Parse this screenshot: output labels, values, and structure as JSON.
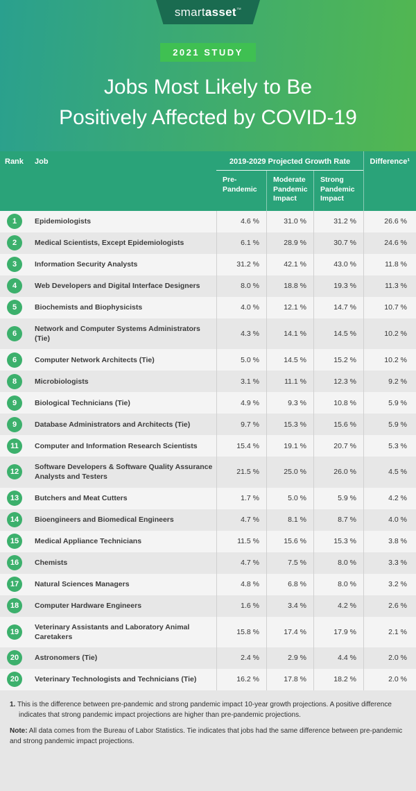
{
  "brand": {
    "smart": "smart",
    "asset": "asset",
    "tm": "™"
  },
  "hero": {
    "badge": "2021 STUDY",
    "title_line1": "Jobs Most Likely to Be",
    "title_line2": "Positively Affected by COVID-19"
  },
  "table": {
    "header": {
      "rank": "Rank",
      "job": "Job",
      "growth_group": "2019-2029 Projected Growth Rate",
      "pre": "Pre-Pandemic",
      "moderate": "Moderate Pandemic Impact",
      "strong": "Strong Pandemic Impact",
      "difference": "Difference¹"
    }
  },
  "chart_data": {
    "type": "table",
    "title": "Jobs Most Likely to Be Positively Affected by COVID-19",
    "columns": [
      "Rank",
      "Job",
      "Pre-Pandemic",
      "Moderate Pandemic Impact",
      "Strong Pandemic Impact",
      "Difference"
    ],
    "rows": [
      {
        "rank": "1",
        "job": "Epidemiologists",
        "pre": "4.6 %",
        "moderate": "31.0 %",
        "strong": "31.2 %",
        "difference": "26.6 %"
      },
      {
        "rank": "2",
        "job": "Medical Scientists, Except Epidemiologists",
        "pre": "6.1 %",
        "moderate": "28.9 %",
        "strong": "30.7 %",
        "difference": "24.6 %"
      },
      {
        "rank": "3",
        "job": "Information Security Analysts",
        "pre": "31.2 %",
        "moderate": "42.1 %",
        "strong": "43.0 %",
        "difference": "11.8 %"
      },
      {
        "rank": "4",
        "job": "Web Developers and Digital Interface Designers",
        "pre": "8.0 %",
        "moderate": "18.8 %",
        "strong": "19.3 %",
        "difference": "11.3 %"
      },
      {
        "rank": "5",
        "job": "Biochemists and Biophysicists",
        "pre": "4.0 %",
        "moderate": "12.1 %",
        "strong": "14.7 %",
        "difference": "10.7 %"
      },
      {
        "rank": "6",
        "job": "Network and Computer Systems Administrators (Tie)",
        "pre": "4.3 %",
        "moderate": "14.1 %",
        "strong": "14.5 %",
        "difference": "10.2 %"
      },
      {
        "rank": "6",
        "job": "Computer Network Architects (Tie)",
        "pre": "5.0 %",
        "moderate": "14.5 %",
        "strong": "15.2 %",
        "difference": "10.2 %"
      },
      {
        "rank": "8",
        "job": "Microbiologists",
        "pre": "3.1 %",
        "moderate": "11.1 %",
        "strong": "12.3 %",
        "difference": "9.2 %"
      },
      {
        "rank": "9",
        "job": "Biological Technicians (Tie)",
        "pre": "4.9 %",
        "moderate": "9.3 %",
        "strong": "10.8 %",
        "difference": "5.9 %"
      },
      {
        "rank": "9",
        "job": "Database Administrators and Architects (Tie)",
        "pre": "9.7 %",
        "moderate": "15.3 %",
        "strong": "15.6 %",
        "difference": "5.9 %"
      },
      {
        "rank": "11",
        "job": "Computer and Information Research Scientists",
        "pre": "15.4 %",
        "moderate": "19.1 %",
        "strong": "20.7 %",
        "difference": "5.3 %"
      },
      {
        "rank": "12",
        "job": "Software Developers & Software Quality Assurance Analysts and Testers",
        "pre": "21.5 %",
        "moderate": "25.0 %",
        "strong": "26.0 %",
        "difference": "4.5 %"
      },
      {
        "rank": "13",
        "job": "Butchers and Meat Cutters",
        "pre": "1.7 %",
        "moderate": "5.0 %",
        "strong": "5.9 %",
        "difference": "4.2 %"
      },
      {
        "rank": "14",
        "job": "Bioengineers and Biomedical Engineers",
        "pre": "4.7 %",
        "moderate": "8.1 %",
        "strong": "8.7 %",
        "difference": "4.0 %"
      },
      {
        "rank": "15",
        "job": "Medical Appliance Technicians",
        "pre": "11.5 %",
        "moderate": "15.6 %",
        "strong": "15.3 %",
        "difference": "3.8 %"
      },
      {
        "rank": "16",
        "job": "Chemists",
        "pre": "4.7 %",
        "moderate": "7.5 %",
        "strong": "8.0 %",
        "difference": "3.3 %"
      },
      {
        "rank": "17",
        "job": "Natural Sciences Managers",
        "pre": "4.8 %",
        "moderate": "6.8 %",
        "strong": "8.0 %",
        "difference": "3.2 %"
      },
      {
        "rank": "18",
        "job": "Computer Hardware Engineers",
        "pre": "1.6 %",
        "moderate": "3.4 %",
        "strong": "4.2 %",
        "difference": "2.6 %"
      },
      {
        "rank": "19",
        "job": "Veterinary Assistants and Laboratory Animal Caretakers",
        "pre": "15.8 %",
        "moderate": "17.4 %",
        "strong": "17.9 %",
        "difference": "2.1 %"
      },
      {
        "rank": "20",
        "job": "Astronomers (Tie)",
        "pre": "2.4 %",
        "moderate": "2.9 %",
        "strong": "4.4 %",
        "difference": "2.0 %"
      },
      {
        "rank": "20",
        "job": "Veterinary Technologists and Technicians (Tie)",
        "pre": "16.2 %",
        "moderate": "17.8 %",
        "strong": "18.2 %",
        "difference": "2.0 %"
      }
    ]
  },
  "footnotes": {
    "note1_label": "1.",
    "note1_text": "This is the difference between pre-pandemic and strong pandemic impact 10-year growth projections. A positive difference indicates that strong pandemic impact projections are higher than pre-pandemic projections.",
    "note2_label": "Note:",
    "note2_text": "All data comes from the Bureau of Labor Statistics. Tie indicates that jobs had the same difference between pre-pandemic and strong pandemic impact projections."
  },
  "colors": {
    "gradient_left": "#2aa08e",
    "gradient_right": "#58ba48",
    "logo_banner": "#1a6b50",
    "ribbon": "#3fc052",
    "ribbon_fold": "#2f9e40",
    "table_header": "#2aa379",
    "rank_badge": "#3cb06c",
    "row": "#f4f4f4",
    "row_alt": "#e7e7e7",
    "footer_bg": "#e6e6e6"
  }
}
